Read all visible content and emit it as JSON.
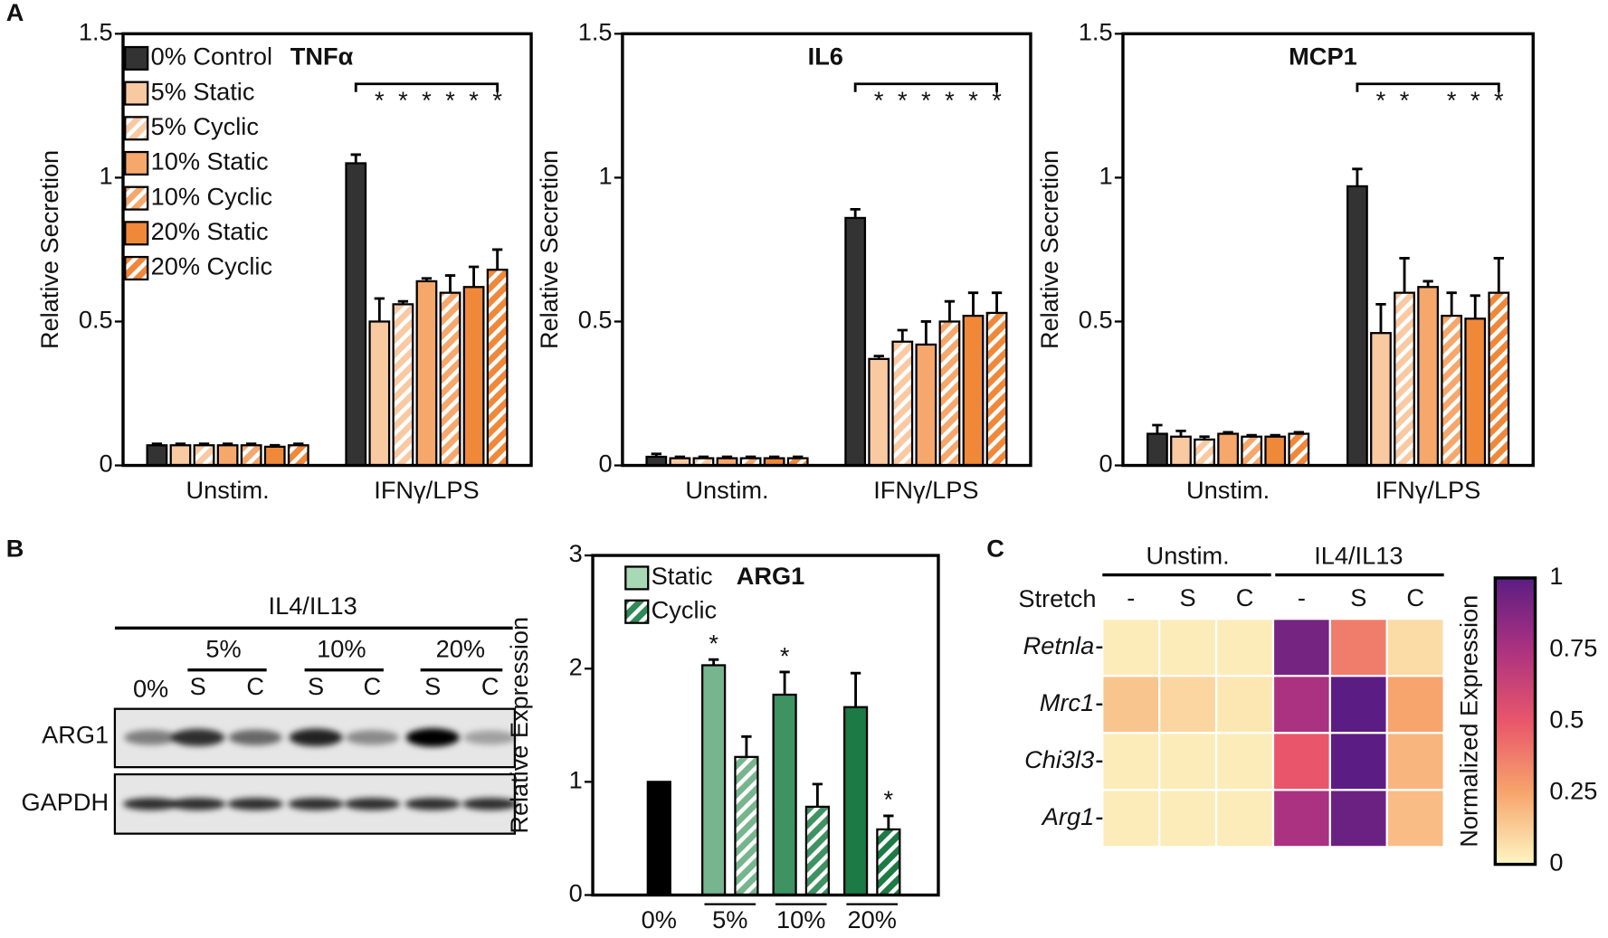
{
  "panels": [
    "A",
    "B",
    "C"
  ],
  "blot": {
    "treatment": "IL4/IL13",
    "doses": [
      "0%",
      "5%",
      "10%",
      "20%"
    ],
    "stretch": [
      "S",
      "C"
    ],
    "rows": [
      "ARG1",
      "GAPDH"
    ]
  },
  "chart_data": [
    {
      "type": "bar",
      "title": "TNFα",
      "ylabel": "Relative Secretion",
      "categories": [
        "Unstim.",
        "IFNγ/LPS"
      ],
      "ylim": [
        0,
        1.5
      ],
      "yticks": [
        0,
        0.5,
        1,
        1.5
      ],
      "legend": "upper left",
      "bracket": true,
      "series": [
        {
          "name": "0% Control",
          "color": "#333333",
          "hatch": false,
          "values": [
            0.07,
            1.05
          ],
          "errors": [
            0.005,
            0.03
          ],
          "stars": [
            null,
            null
          ]
        },
        {
          "name": "5% Static",
          "color": "#f9c9a2",
          "hatch": false,
          "values": [
            0.07,
            0.5
          ],
          "errors": [
            0.005,
            0.08
          ],
          "stars": [
            null,
            "*"
          ]
        },
        {
          "name": "5% Cyclic",
          "color": "#f9c9a2",
          "hatch": true,
          "values": [
            0.07,
            0.56
          ],
          "errors": [
            0.005,
            0.01
          ],
          "stars": [
            null,
            "*"
          ]
        },
        {
          "name": "10% Static",
          "color": "#f6a76b",
          "hatch": false,
          "values": [
            0.07,
            0.64
          ],
          "errors": [
            0.005,
            0.01
          ],
          "stars": [
            null,
            "*"
          ]
        },
        {
          "name": "10% Cyclic",
          "color": "#f6a76b",
          "hatch": true,
          "values": [
            0.07,
            0.6
          ],
          "errors": [
            0.005,
            0.06
          ],
          "stars": [
            null,
            "*"
          ]
        },
        {
          "name": "20% Static",
          "color": "#f0883a",
          "hatch": false,
          "values": [
            0.065,
            0.62
          ],
          "errors": [
            0.005,
            0.07
          ],
          "stars": [
            null,
            "*"
          ]
        },
        {
          "name": "20% Cyclic",
          "color": "#f0883a",
          "hatch": true,
          "values": [
            0.07,
            0.68
          ],
          "errors": [
            0.005,
            0.07
          ],
          "stars": [
            null,
            "*"
          ]
        }
      ]
    },
    {
      "type": "bar",
      "title": "IL6",
      "ylabel": "Relative Secretion",
      "categories": [
        "Unstim.",
        "IFNγ/LPS"
      ],
      "ylim": [
        0,
        1.5
      ],
      "yticks": [
        0,
        0.5,
        1,
        1.5
      ],
      "bracket": true,
      "series": [
        {
          "name": "0% Control",
          "color": "#333333",
          "hatch": false,
          "values": [
            0.03,
            0.86
          ],
          "errors": [
            0.01,
            0.03
          ],
          "stars": [
            null,
            null
          ]
        },
        {
          "name": "5% Static",
          "color": "#f9c9a2",
          "hatch": false,
          "values": [
            0.025,
            0.37
          ],
          "errors": [
            0.005,
            0.01
          ],
          "stars": [
            null,
            "*"
          ]
        },
        {
          "name": "5% Cyclic",
          "color": "#f9c9a2",
          "hatch": true,
          "values": [
            0.025,
            0.43
          ],
          "errors": [
            0.005,
            0.04
          ],
          "stars": [
            null,
            "*"
          ]
        },
        {
          "name": "10% Static",
          "color": "#f6a76b",
          "hatch": false,
          "values": [
            0.025,
            0.42
          ],
          "errors": [
            0.005,
            0.08
          ],
          "stars": [
            null,
            "*"
          ]
        },
        {
          "name": "10% Cyclic",
          "color": "#f6a76b",
          "hatch": true,
          "values": [
            0.025,
            0.5
          ],
          "errors": [
            0.005,
            0.07
          ],
          "stars": [
            null,
            "*"
          ]
        },
        {
          "name": "20% Static",
          "color": "#f0883a",
          "hatch": false,
          "values": [
            0.025,
            0.52
          ],
          "errors": [
            0.005,
            0.08
          ],
          "stars": [
            null,
            "*"
          ]
        },
        {
          "name": "20% Cyclic",
          "color": "#f0883a",
          "hatch": true,
          "values": [
            0.025,
            0.53
          ],
          "errors": [
            0.005,
            0.07
          ],
          "stars": [
            null,
            "*"
          ]
        }
      ]
    },
    {
      "type": "bar",
      "title": "MCP1",
      "ylabel": "Relative Secretion",
      "categories": [
        "Unstim.",
        "IFNγ/LPS"
      ],
      "ylim": [
        0,
        1.5
      ],
      "yticks": [
        0,
        0.5,
        1,
        1.5
      ],
      "bracket": true,
      "series": [
        {
          "name": "0% Control",
          "color": "#333333",
          "hatch": false,
          "values": [
            0.11,
            0.97
          ],
          "errors": [
            0.03,
            0.06
          ],
          "stars": [
            null,
            null
          ]
        },
        {
          "name": "5% Static",
          "color": "#f9c9a2",
          "hatch": false,
          "values": [
            0.1,
            0.46
          ],
          "errors": [
            0.02,
            0.1
          ],
          "stars": [
            null,
            "*"
          ]
        },
        {
          "name": "5% Cyclic",
          "color": "#f9c9a2",
          "hatch": true,
          "values": [
            0.09,
            0.6
          ],
          "errors": [
            0.01,
            0.12
          ],
          "stars": [
            null,
            "*"
          ]
        },
        {
          "name": "10% Static",
          "color": "#f6a76b",
          "hatch": false,
          "values": [
            0.11,
            0.62
          ],
          "errors": [
            0.005,
            0.02
          ],
          "stars": [
            null,
            null
          ]
        },
        {
          "name": "10% Cyclic",
          "color": "#f6a76b",
          "hatch": true,
          "values": [
            0.1,
            0.52
          ],
          "errors": [
            0.005,
            0.08
          ],
          "stars": [
            null,
            "*"
          ]
        },
        {
          "name": "20% Static",
          "color": "#f0883a",
          "hatch": false,
          "values": [
            0.1,
            0.51
          ],
          "errors": [
            0.005,
            0.08
          ],
          "stars": [
            null,
            "*"
          ]
        },
        {
          "name": "20% Cyclic",
          "color": "#f0883a",
          "hatch": true,
          "values": [
            0.11,
            0.6
          ],
          "errors": [
            0.005,
            0.12
          ],
          "stars": [
            null,
            "*"
          ]
        }
      ]
    },
    {
      "type": "bar",
      "title": "ARG1",
      "ylabel": "Relative Expression",
      "categories": [
        "0%",
        "5%",
        "10%",
        "20%"
      ],
      "ylim": [
        0,
        3
      ],
      "yticks": [
        0,
        1,
        2,
        3
      ],
      "legend": "upper left",
      "bracket": false,
      "series": [
        {
          "name": "Static",
          "color": "#a9d9b4",
          "colors": [
            "#000000",
            "#76b58e",
            "#3f9262",
            "#1c7a44"
          ],
          "hatch": false,
          "values": [
            1,
            2.03,
            1.77,
            1.66
          ],
          "errors": [
            0,
            0.05,
            0.2,
            0.3
          ],
          "stars": [
            null,
            "*",
            "*",
            null
          ]
        },
        {
          "name": "Cyclic",
          "color": "#2f8a55",
          "colors": [
            null,
            "#76b58e",
            "#3f9262",
            "#1c7a44"
          ],
          "hatch": true,
          "values": [
            null,
            1.22,
            0.78,
            0.58
          ],
          "errors": [
            null,
            0.18,
            0.2,
            0.12
          ],
          "stars": [
            null,
            null,
            null,
            "*"
          ]
        }
      ]
    },
    {
      "type": "heatmap",
      "x_label": "Stretch",
      "column_groups": [
        "Unstim.",
        "IL4/IL13"
      ],
      "columns": [
        "-",
        "S",
        "C",
        "-",
        "S",
        "C"
      ],
      "rows": [
        "Retnla",
        "Mrc1",
        "Chi3l3",
        "Arg1"
      ],
      "values": [
        [
          0.03,
          0.03,
          0.03,
          0.92,
          0.38,
          0.08
        ],
        [
          0.15,
          0.1,
          0.05,
          0.75,
          1.0,
          0.25
        ],
        [
          0.03,
          0.03,
          0.03,
          0.5,
          1.0,
          0.2
        ],
        [
          0.03,
          0.03,
          0.03,
          0.75,
          0.95,
          0.18
        ]
      ],
      "colormap": [
        "#fdf6c3",
        "#f7a56c",
        "#e9566b",
        "#ab3280",
        "#5b1d83"
      ],
      "clim": [
        0,
        1
      ],
      "cticks": [
        0,
        0.25,
        0.5,
        0.75,
        1
      ],
      "clabel": "Normalized Expression"
    }
  ]
}
